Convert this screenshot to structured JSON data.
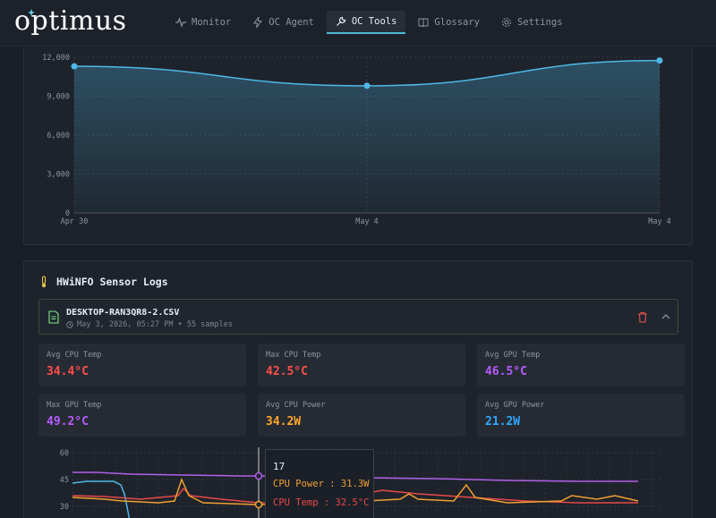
{
  "app": {
    "logo_text": "optimus"
  },
  "nav": {
    "items": [
      {
        "label": "Monitor",
        "icon": "activity-icon"
      },
      {
        "label": "OC Agent",
        "icon": "lightning-icon"
      },
      {
        "label": "OC Tools",
        "icon": "wrench-icon",
        "active": true
      },
      {
        "label": "Glossary",
        "icon": "book-icon"
      },
      {
        "label": "Settings",
        "icon": "gear-icon"
      }
    ]
  },
  "chart_data": [
    {
      "type": "area",
      "x": [
        "Apr 30",
        "May 4",
        "May 4"
      ],
      "y_ticks": [
        "0",
        "3,000",
        "6,000",
        "9,000",
        "12,000"
      ],
      "ylim": [
        0,
        12000
      ],
      "series": [
        {
          "values": [
            11300,
            9800,
            11750
          ],
          "color": "#4fb8e8"
        }
      ],
      "grid": true
    },
    {
      "type": "line",
      "y_ticks": [
        "30",
        "45",
        "60"
      ],
      "series": [
        {
          "color": "#b060e8"
        },
        {
          "color": "#f0a030"
        },
        {
          "color": "#e84848"
        },
        {
          "color": "#4fb8e8"
        }
      ],
      "tooltip": {
        "title": "17",
        "rows": [
          {
            "label": "CPU Power",
            "value": "31.3W",
            "color": "#f0a030"
          },
          {
            "label": "CPU Temp",
            "value": "32.5°C",
            "color": "#e84848"
          }
        ]
      }
    }
  ],
  "logs": {
    "title": "HWiNFO Sensor Logs",
    "file": {
      "name": "DESKTOP-RAN3QR8-2.CSV",
      "meta": "May 3, 2026, 05:27 PM • 55 samples"
    },
    "stats": [
      {
        "label": "Avg CPU Temp",
        "value": "34.4°C",
        "color": "#ff4d4d"
      },
      {
        "label": "Max CPU Temp",
        "value": "42.5°C",
        "color": "#ff4d4d"
      },
      {
        "label": "Avg GPU Temp",
        "value": "46.5°C",
        "color": "#b45cff"
      },
      {
        "label": "Max GPU Temp",
        "value": "49.2°C",
        "color": "#b45cff"
      },
      {
        "label": "Avg CPU Power",
        "value": "34.2W",
        "color": "#ffa62b"
      },
      {
        "label": "Avg GPU Power",
        "value": "21.2W",
        "color": "#2fa8ff"
      }
    ]
  }
}
